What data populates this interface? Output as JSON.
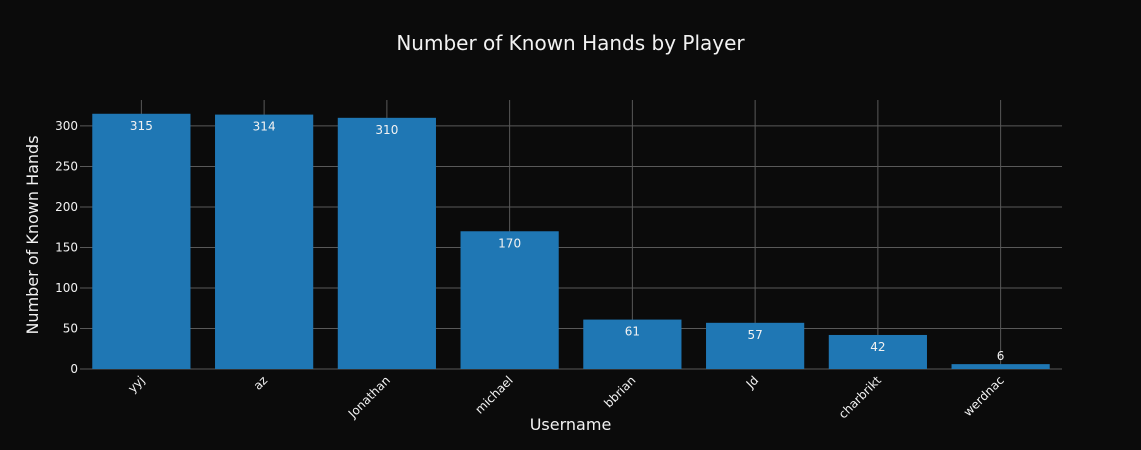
{
  "chart_data": {
    "type": "bar",
    "title": "Number of Known Hands by Player",
    "xlabel": "Username",
    "ylabel": "Number of Known Hands",
    "categories": [
      "yyj",
      "az",
      "Jonathan",
      "michael",
      "bbrian",
      "Jd",
      "charbrikt",
      "werdnac"
    ],
    "values": [
      315,
      314,
      310,
      170,
      61,
      57,
      42,
      6
    ],
    "ylim": [
      0,
      332
    ],
    "yticks": [
      0,
      50,
      100,
      150,
      200,
      250,
      300
    ],
    "grid": true,
    "legend": false,
    "colors": {
      "background": "#0b0b0b",
      "bar": "#1f77b4",
      "grid": "#595959",
      "text": "#f2f2f2"
    }
  }
}
